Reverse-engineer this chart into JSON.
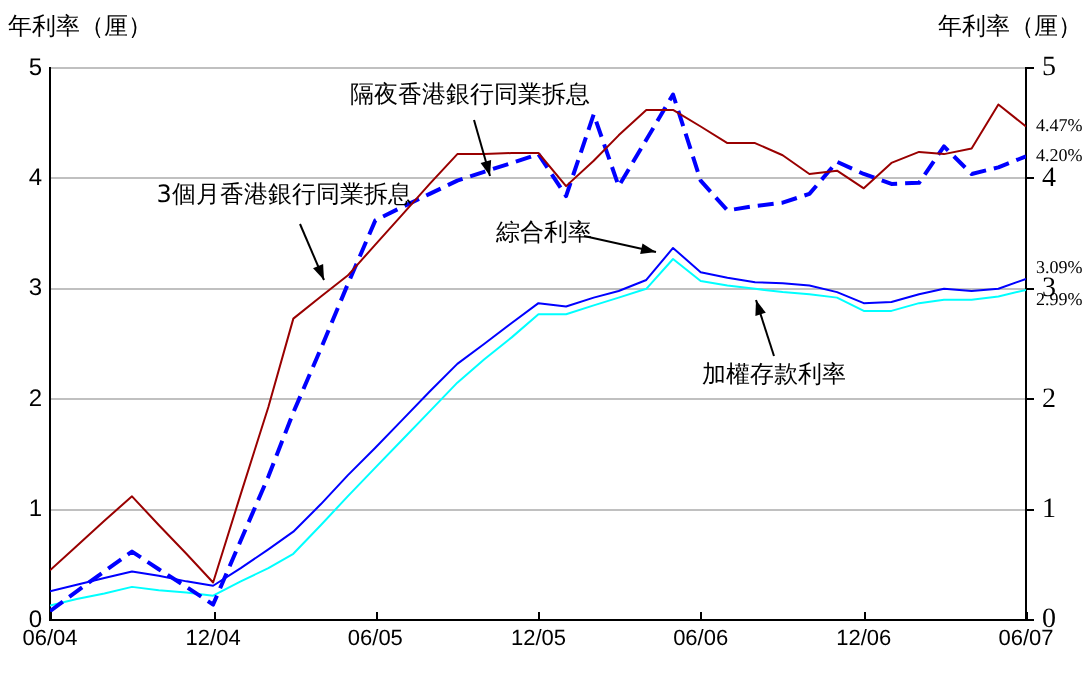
{
  "chart_data": {
    "type": "line",
    "ylabel": "年利率（厘）",
    "y2label": "年利率（厘）",
    "x": [
      "2004-06",
      "2004-07",
      "2004-08",
      "2004-09",
      "2004-10",
      "2004-11",
      "2004-12",
      "2005-01",
      "2005-02",
      "2005-03",
      "2005-04",
      "2005-05",
      "2005-06",
      "2005-07",
      "2005-08",
      "2005-09",
      "2005-10",
      "2005-11",
      "2005-12",
      "2006-01",
      "2006-02",
      "2006-03",
      "2006-04",
      "2006-05",
      "2006-06",
      "2006-07",
      "2006-08",
      "2006-09",
      "2006-10",
      "2006-11",
      "2006-12",
      "2007-01",
      "2007-02",
      "2007-03",
      "2007-04",
      "2007-05",
      "2007-06"
    ],
    "xlim": [
      "2004-06",
      "2007-06"
    ],
    "xticks": [
      {
        "value": "2004-06",
        "label": "06/04"
      },
      {
        "value": "2004-12",
        "label": "12/04"
      },
      {
        "value": "2005-06",
        "label": "06/05"
      },
      {
        "value": "2005-12",
        "label": "12/05"
      },
      {
        "value": "2006-06",
        "label": "06/06"
      },
      {
        "value": "2006-12",
        "label": "12/06"
      },
      {
        "value": "2007-06",
        "label": "06/07"
      }
    ],
    "ylim": [
      0,
      5
    ],
    "yticks": [
      0,
      1,
      2,
      3,
      4,
      5
    ],
    "y2lim": [
      0,
      5
    ],
    "y2ticks": [
      0,
      1,
      2,
      3,
      4,
      5
    ],
    "grid": "y",
    "legend": false,
    "marker": "none",
    "series": [
      {
        "name": "3個月香港銀行同業拆息",
        "color": "#990000",
        "line_style": "solid",
        "values": [
          0.45,
          0.67,
          0.9,
          1.12,
          0.86,
          0.6,
          0.34,
          1.14,
          1.93,
          2.73,
          2.93,
          3.12,
          3.4,
          3.67,
          3.95,
          4.22,
          4.22,
          4.23,
          4.23,
          3.93,
          4.16,
          4.39,
          4.62,
          4.62,
          4.47,
          4.32,
          4.32,
          4.21,
          4.04,
          4.07,
          3.91,
          4.14,
          4.24,
          4.22,
          4.27,
          4.67,
          4.47
        ],
        "value_labels": [
          null,
          null,
          null,
          null,
          null,
          null,
          null,
          null,
          null,
          null,
          null,
          null,
          null,
          null,
          null,
          null,
          null,
          null,
          null,
          null,
          null,
          null,
          null,
          null,
          null,
          null,
          null,
          null,
          null,
          null,
          null,
          null,
          null,
          null,
          null,
          null,
          "4.47%"
        ]
      },
      {
        "name": "隔夜香港銀行同業拆息",
        "color": "#0000ff",
        "line_style": "dashed",
        "values": [
          0.08,
          0.26,
          0.44,
          0.62,
          0.46,
          0.3,
          0.14,
          0.72,
          1.3,
          1.88,
          2.46,
          3.04,
          3.62,
          3.74,
          3.86,
          3.98,
          4.06,
          4.14,
          4.22,
          3.84,
          4.58,
          3.93,
          4.35,
          4.76,
          3.98,
          3.71,
          3.75,
          3.78,
          3.86,
          4.15,
          4.04,
          3.95,
          3.96,
          4.29,
          4.04,
          4.1,
          4.2
        ],
        "value_labels": [
          null,
          null,
          null,
          null,
          null,
          null,
          null,
          null,
          null,
          null,
          null,
          null,
          null,
          null,
          null,
          null,
          null,
          null,
          null,
          null,
          null,
          null,
          null,
          null,
          null,
          null,
          null,
          null,
          null,
          null,
          null,
          null,
          null,
          null,
          null,
          null,
          "4.20%"
        ]
      },
      {
        "name": "綜合利率",
        "color": "#0000ff",
        "line_style": "solid",
        "values": [
          0.26,
          0.32,
          0.38,
          0.44,
          0.4,
          0.35,
          0.31,
          0.47,
          0.64,
          0.8,
          1.05,
          1.31,
          1.56,
          1.81,
          2.07,
          2.32,
          2.5,
          2.69,
          2.87,
          2.84,
          2.92,
          2.98,
          3.08,
          3.37,
          3.15,
          3.1,
          3.06,
          3.05,
          3.03,
          2.97,
          2.87,
          2.88,
          2.95,
          3.0,
          2.98,
          3.0,
          3.09
        ],
        "value_labels": [
          null,
          null,
          null,
          null,
          null,
          null,
          null,
          null,
          null,
          null,
          null,
          null,
          null,
          null,
          null,
          null,
          null,
          null,
          null,
          null,
          null,
          null,
          null,
          null,
          null,
          null,
          null,
          null,
          null,
          null,
          null,
          null,
          null,
          null,
          null,
          null,
          "3.09%"
        ]
      },
      {
        "name": "加權存款利率",
        "color": "#00ffff",
        "line_style": "solid",
        "values": [
          0.13,
          0.19,
          0.24,
          0.3,
          0.27,
          0.25,
          0.22,
          0.35,
          0.47,
          0.6,
          0.86,
          1.12,
          1.38,
          1.63,
          1.89,
          2.15,
          2.36,
          2.56,
          2.77,
          2.77,
          2.85,
          2.92,
          3.0,
          3.27,
          3.07,
          3.03,
          3.0,
          2.97,
          2.95,
          2.92,
          2.8,
          2.8,
          2.87,
          2.9,
          2.9,
          2.93,
          2.99
        ],
        "value_labels": [
          null,
          null,
          null,
          null,
          null,
          null,
          null,
          null,
          null,
          null,
          null,
          null,
          null,
          null,
          null,
          null,
          null,
          null,
          null,
          null,
          null,
          null,
          null,
          null,
          null,
          null,
          null,
          null,
          null,
          null,
          null,
          null,
          null,
          null,
          null,
          null,
          "2.99%"
        ]
      }
    ]
  }
}
